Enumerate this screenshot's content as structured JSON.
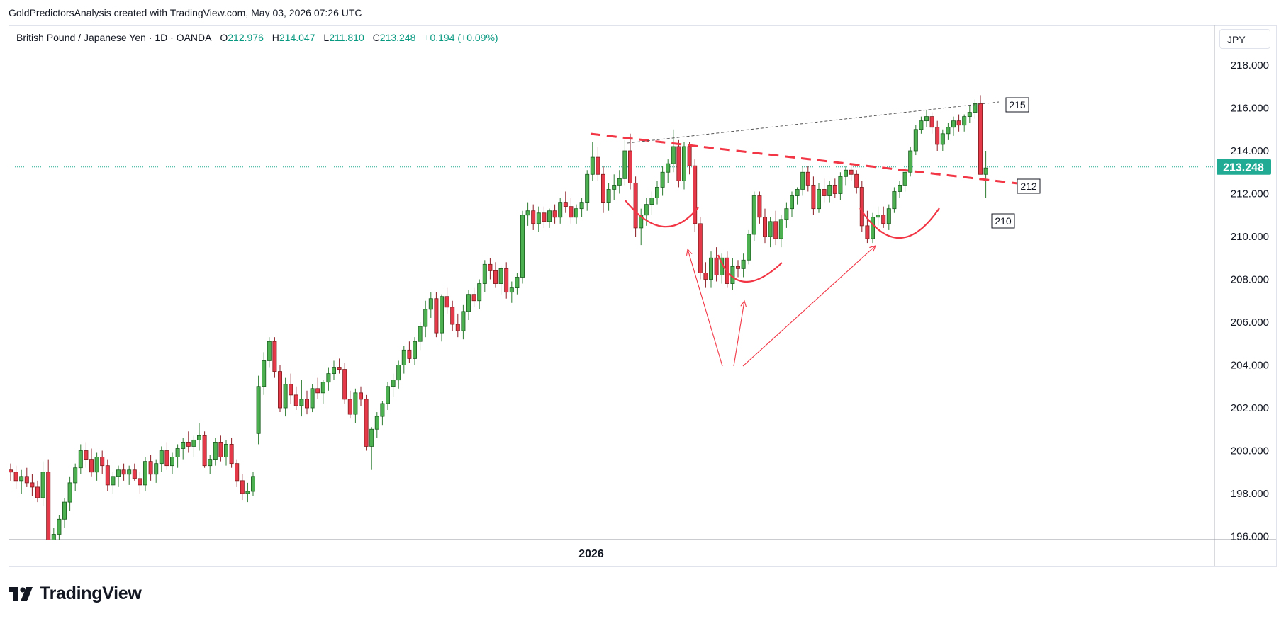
{
  "header": {
    "attribution": "GoldPredictorsAnalysis created with TradingView.com, May 03, 2026 07:26 UTC"
  },
  "legend": {
    "symbol": "British Pound / Japanese Yen · 1D · OANDA",
    "open_label": "O",
    "open": "212.976",
    "high_label": "H",
    "high": "214.047",
    "low_label": "L",
    "low": "211.810",
    "close_label": "C",
    "close": "213.248",
    "change": "+0.194 (+0.09%)"
  },
  "currency_button": "JPY",
  "footer": {
    "brand": "TradingView"
  },
  "colors": {
    "up": "#089981",
    "down": "#f23645",
    "wick_up": "#089981",
    "wick_down": "#f23645",
    "candle_up_fill": "#4caf50",
    "candle_down_fill": "#e5394a",
    "pattern": "#f23645",
    "price_tag": "#22ab94"
  },
  "chart_data": {
    "type": "candlestick",
    "x_label": "2026",
    "ylim": [
      196,
      219
    ],
    "y_ticks": [
      "218.000",
      "216.000",
      "214.000",
      "212.000",
      "210.000",
      "208.000",
      "206.000",
      "204.000",
      "202.000",
      "200.000",
      "198.000",
      "196.000"
    ],
    "last_price": "213.248",
    "annotations": {
      "boxes": [
        "215",
        "212",
        "210"
      ]
    },
    "candles": [
      [
        199.1,
        199.4,
        198.6,
        199.0
      ],
      [
        199.0,
        199.3,
        198.2,
        198.6
      ],
      [
        198.6,
        199.1,
        198.0,
        198.8
      ],
      [
        198.8,
        199.2,
        198.3,
        198.5
      ],
      [
        198.5,
        198.9,
        197.9,
        198.3
      ],
      [
        198.3,
        198.6,
        197.6,
        197.8
      ],
      [
        197.8,
        199.5,
        197.4,
        199.0
      ],
      [
        199.0,
        199.6,
        195.0,
        195.6
      ],
      [
        195.6,
        196.4,
        195.3,
        196.1
      ],
      [
        196.1,
        197.0,
        195.8,
        196.8
      ],
      [
        196.8,
        197.8,
        196.4,
        197.6
      ],
      [
        197.6,
        198.8,
        197.2,
        198.5
      ],
      [
        198.5,
        199.4,
        198.1,
        199.2
      ],
      [
        199.2,
        200.3,
        198.9,
        200.0
      ],
      [
        200.0,
        200.4,
        199.2,
        199.6
      ],
      [
        199.6,
        200.1,
        198.8,
        199.0
      ],
      [
        199.0,
        199.9,
        198.6,
        199.7
      ],
      [
        199.7,
        200.0,
        198.9,
        199.3
      ],
      [
        199.3,
        199.6,
        198.1,
        198.4
      ],
      [
        198.4,
        199.0,
        198.0,
        198.8
      ],
      [
        198.8,
        199.3,
        198.3,
        199.1
      ],
      [
        199.1,
        199.4,
        198.6,
        198.9
      ],
      [
        198.9,
        199.3,
        198.4,
        199.1
      ],
      [
        199.1,
        199.4,
        198.6,
        198.7
      ],
      [
        198.7,
        199.0,
        198.0,
        198.4
      ],
      [
        198.4,
        199.7,
        198.1,
        199.5
      ],
      [
        199.5,
        199.8,
        198.6,
        198.9
      ],
      [
        198.9,
        199.6,
        198.5,
        199.4
      ],
      [
        199.4,
        200.2,
        199.0,
        200.0
      ],
      [
        200.0,
        200.4,
        199.1,
        199.3
      ],
      [
        199.3,
        199.9,
        198.9,
        199.7
      ],
      [
        199.7,
        200.3,
        199.2,
        200.1
      ],
      [
        200.1,
        200.6,
        199.6,
        200.4
      ],
      [
        200.4,
        200.9,
        199.9,
        200.2
      ],
      [
        200.2,
        200.7,
        199.7,
        200.5
      ],
      [
        200.5,
        201.3,
        200.0,
        200.7
      ],
      [
        200.7,
        200.9,
        199.2,
        199.3
      ],
      [
        199.3,
        199.8,
        198.9,
        199.6
      ],
      [
        199.6,
        200.6,
        199.3,
        200.4
      ],
      [
        200.4,
        200.7,
        199.5,
        199.7
      ],
      [
        199.7,
        200.5,
        199.3,
        200.3
      ],
      [
        200.3,
        200.6,
        199.2,
        199.4
      ],
      [
        199.4,
        199.6,
        198.3,
        198.6
      ],
      [
        198.6,
        198.9,
        197.7,
        198.0
      ],
      [
        198.0,
        198.5,
        197.6,
        198.1
      ],
      [
        198.1,
        199.0,
        197.9,
        198.8
      ],
      [
        200.8,
        203.5,
        200.3,
        203.0
      ],
      [
        203.0,
        204.6,
        202.6,
        204.2
      ],
      [
        204.2,
        205.3,
        203.9,
        205.1
      ],
      [
        205.1,
        205.3,
        203.4,
        203.7
      ],
      [
        203.7,
        204.0,
        201.8,
        202.0
      ],
      [
        202.0,
        203.4,
        201.6,
        203.1
      ],
      [
        203.1,
        203.6,
        202.2,
        202.6
      ],
      [
        202.6,
        203.0,
        201.9,
        202.1
      ],
      [
        202.1,
        203.3,
        201.6,
        202.4
      ],
      [
        202.4,
        202.8,
        201.7,
        202.0
      ],
      [
        202.0,
        203.1,
        201.8,
        202.9
      ],
      [
        202.9,
        203.4,
        202.4,
        202.7
      ],
      [
        202.7,
        203.3,
        202.2,
        203.2
      ],
      [
        203.2,
        203.9,
        202.8,
        203.6
      ],
      [
        203.6,
        204.2,
        203.3,
        203.9
      ],
      [
        203.9,
        204.3,
        203.6,
        203.8
      ],
      [
        203.8,
        204.1,
        202.2,
        202.4
      ],
      [
        202.4,
        202.8,
        201.5,
        201.7
      ],
      [
        201.7,
        202.9,
        201.3,
        202.7
      ],
      [
        202.7,
        203.0,
        202.1,
        202.4
      ],
      [
        202.4,
        202.6,
        200.0,
        200.2
      ],
      [
        200.2,
        201.1,
        199.1,
        201.0
      ],
      [
        201.0,
        201.8,
        200.6,
        201.6
      ],
      [
        201.6,
        202.3,
        201.2,
        202.2
      ],
      [
        202.2,
        203.2,
        201.9,
        203.0
      ],
      [
        203.0,
        203.6,
        202.5,
        203.3
      ],
      [
        203.3,
        204.2,
        202.9,
        204.0
      ],
      [
        204.0,
        204.9,
        203.6,
        204.7
      ],
      [
        204.7,
        205.1,
        204.1,
        204.3
      ],
      [
        204.3,
        205.3,
        204.0,
        205.1
      ],
      [
        205.1,
        206.0,
        204.7,
        205.8
      ],
      [
        205.8,
        207.0,
        205.3,
        206.6
      ],
      [
        206.6,
        207.4,
        206.2,
        207.1
      ],
      [
        207.1,
        207.4,
        205.3,
        205.5
      ],
      [
        205.5,
        207.3,
        205.1,
        207.2
      ],
      [
        207.2,
        207.6,
        206.4,
        206.7
      ],
      [
        206.7,
        207.0,
        205.6,
        205.9
      ],
      [
        205.9,
        206.4,
        205.3,
        205.6
      ],
      [
        205.6,
        206.8,
        205.2,
        206.5
      ],
      [
        206.5,
        207.5,
        206.1,
        207.3
      ],
      [
        207.3,
        207.6,
        206.7,
        207.0
      ],
      [
        207.0,
        208.0,
        206.6,
        207.8
      ],
      [
        207.8,
        208.9,
        207.4,
        208.7
      ],
      [
        208.7,
        209.0,
        208.0,
        208.4
      ],
      [
        208.4,
        208.8,
        207.6,
        207.8
      ],
      [
        207.8,
        208.6,
        207.3,
        208.5
      ],
      [
        208.5,
        208.8,
        207.1,
        207.4
      ],
      [
        207.4,
        207.9,
        206.9,
        207.6
      ],
      [
        207.6,
        208.3,
        207.3,
        208.1
      ],
      [
        208.1,
        211.2,
        207.8,
        211.0
      ],
      [
        211.0,
        211.6,
        210.5,
        211.2
      ],
      [
        211.2,
        211.5,
        210.3,
        210.6
      ],
      [
        210.6,
        211.4,
        210.2,
        211.1
      ],
      [
        211.1,
        211.4,
        210.4,
        210.7
      ],
      [
        210.7,
        211.3,
        210.4,
        211.2
      ],
      [
        211.2,
        211.5,
        210.6,
        210.9
      ],
      [
        210.9,
        211.8,
        210.6,
        211.6
      ],
      [
        211.6,
        212.1,
        211.1,
        211.4
      ],
      [
        211.4,
        211.8,
        210.6,
        210.9
      ],
      [
        210.9,
        211.5,
        210.6,
        211.3
      ],
      [
        211.3,
        211.8,
        210.9,
        211.6
      ],
      [
        211.6,
        213.1,
        211.2,
        212.9
      ],
      [
        212.9,
        214.4,
        212.6,
        213.7
      ],
      [
        213.7,
        214.2,
        212.6,
        212.9
      ],
      [
        212.9,
        213.3,
        211.1,
        211.6
      ],
      [
        211.6,
        212.5,
        211.2,
        212.2
      ],
      [
        212.2,
        212.9,
        211.7,
        212.4
      ],
      [
        212.4,
        213.1,
        212.0,
        212.7
      ],
      [
        212.7,
        214.5,
        212.4,
        214.0
      ],
      [
        214.0,
        214.8,
        212.2,
        212.5
      ],
      [
        212.5,
        212.8,
        210.0,
        210.4
      ],
      [
        210.4,
        211.3,
        209.6,
        211.0
      ],
      [
        211.0,
        211.8,
        210.5,
        211.5
      ],
      [
        211.5,
        212.1,
        211.0,
        211.8
      ],
      [
        211.8,
        212.6,
        211.5,
        212.3
      ],
      [
        212.3,
        213.3,
        211.9,
        213.0
      ],
      [
        213.0,
        213.6,
        212.5,
        213.4
      ],
      [
        213.4,
        215.0,
        213.0,
        214.2
      ],
      [
        214.2,
        214.5,
        212.3,
        212.6
      ],
      [
        212.6,
        214.4,
        212.2,
        214.2
      ],
      [
        214.2,
        214.4,
        212.9,
        213.3
      ],
      [
        213.3,
        213.6,
        210.2,
        210.6
      ],
      [
        210.6,
        210.9,
        208.0,
        208.3
      ],
      [
        208.3,
        208.8,
        207.6,
        208.0
      ],
      [
        208.0,
        209.3,
        207.6,
        209.0
      ],
      [
        209.0,
        209.5,
        207.9,
        208.2
      ],
      [
        208.2,
        209.2,
        207.8,
        209.0
      ],
      [
        209.0,
        209.3,
        207.6,
        207.8
      ],
      [
        207.8,
        209.0,
        207.5,
        208.6
      ],
      [
        208.6,
        208.9,
        208.1,
        208.5
      ],
      [
        208.5,
        209.2,
        208.1,
        208.9
      ],
      [
        208.9,
        210.3,
        208.7,
        210.1
      ],
      [
        210.1,
        212.1,
        209.8,
        211.9
      ],
      [
        211.9,
        212.1,
        210.6,
        210.9
      ],
      [
        210.9,
        211.3,
        209.7,
        210.0
      ],
      [
        210.0,
        210.9,
        209.5,
        210.7
      ],
      [
        210.7,
        211.2,
        209.6,
        209.9
      ],
      [
        209.9,
        211.0,
        209.5,
        210.8
      ],
      [
        210.8,
        211.6,
        210.4,
        211.3
      ],
      [
        211.3,
        212.1,
        210.9,
        211.9
      ],
      [
        211.9,
        212.3,
        211.5,
        212.2
      ],
      [
        212.2,
        213.3,
        211.9,
        213.0
      ],
      [
        213.0,
        213.3,
        212.1,
        212.4
      ],
      [
        212.4,
        212.8,
        211.0,
        211.3
      ],
      [
        211.3,
        212.5,
        211.1,
        212.2
      ],
      [
        212.2,
        212.7,
        211.6,
        211.9
      ],
      [
        211.9,
        212.6,
        211.6,
        212.4
      ],
      [
        212.4,
        212.7,
        211.8,
        212.0
      ],
      [
        212.0,
        213.0,
        211.7,
        212.8
      ],
      [
        212.8,
        213.3,
        212.4,
        213.1
      ],
      [
        213.1,
        213.4,
        212.6,
        212.9
      ],
      [
        212.9,
        213.1,
        212.0,
        212.3
      ],
      [
        212.3,
        212.6,
        210.2,
        210.5
      ],
      [
        210.5,
        211.2,
        209.7,
        209.9
      ],
      [
        209.9,
        211.1,
        209.7,
        210.9
      ],
      [
        210.9,
        211.4,
        210.5,
        211.0
      ],
      [
        211.0,
        211.4,
        210.4,
        210.6
      ],
      [
        210.6,
        211.5,
        210.3,
        211.3
      ],
      [
        211.3,
        212.3,
        211.1,
        212.1
      ],
      [
        212.1,
        212.6,
        211.8,
        212.4
      ],
      [
        212.4,
        213.2,
        212.1,
        213.0
      ],
      [
        213.0,
        214.2,
        212.8,
        214.0
      ],
      [
        214.0,
        215.2,
        213.8,
        215.0
      ],
      [
        215.0,
        215.6,
        214.8,
        215.4
      ],
      [
        215.4,
        215.9,
        215.1,
        215.6
      ],
      [
        215.6,
        215.8,
        214.8,
        215.1
      ],
      [
        215.1,
        215.4,
        214.0,
        214.3
      ],
      [
        214.3,
        215.0,
        214.0,
        214.8
      ],
      [
        214.8,
        215.3,
        214.5,
        215.1
      ],
      [
        215.1,
        215.6,
        214.7,
        215.4
      ],
      [
        215.4,
        215.7,
        214.9,
        215.2
      ],
      [
        215.2,
        215.7,
        214.9,
        215.6
      ],
      [
        215.6,
        216.1,
        215.3,
        215.8
      ],
      [
        215.8,
        216.4,
        215.5,
        216.2
      ],
      [
        216.2,
        216.6,
        212.9,
        212.9
      ],
      [
        212.9,
        214.0,
        211.8,
        213.2
      ]
    ]
  }
}
